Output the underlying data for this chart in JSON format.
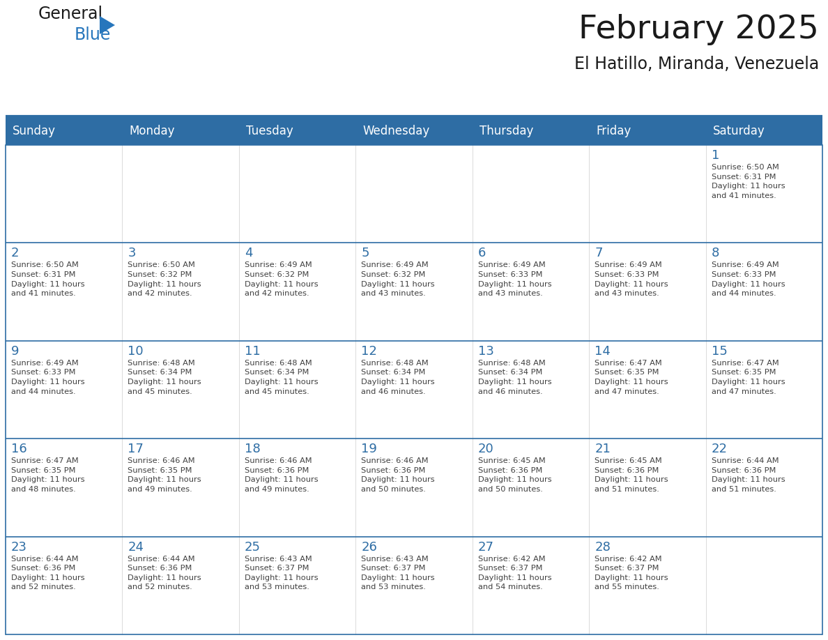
{
  "title": "February 2025",
  "subtitle": "El Hatillo, Miranda, Venezuela",
  "header_bg": "#2E6DA4",
  "header_text": "#FFFFFF",
  "day_number_color": "#2E6DA4",
  "text_color": "#404040",
  "line_color": "#2E6DA4",
  "days_of_week": [
    "Sunday",
    "Monday",
    "Tuesday",
    "Wednesday",
    "Thursday",
    "Friday",
    "Saturday"
  ],
  "weeks": [
    [
      {
        "day": null,
        "info": null
      },
      {
        "day": null,
        "info": null
      },
      {
        "day": null,
        "info": null
      },
      {
        "day": null,
        "info": null
      },
      {
        "day": null,
        "info": null
      },
      {
        "day": null,
        "info": null
      },
      {
        "day": 1,
        "info": "Sunrise: 6:50 AM\nSunset: 6:31 PM\nDaylight: 11 hours\nand 41 minutes."
      }
    ],
    [
      {
        "day": 2,
        "info": "Sunrise: 6:50 AM\nSunset: 6:31 PM\nDaylight: 11 hours\nand 41 minutes."
      },
      {
        "day": 3,
        "info": "Sunrise: 6:50 AM\nSunset: 6:32 PM\nDaylight: 11 hours\nand 42 minutes."
      },
      {
        "day": 4,
        "info": "Sunrise: 6:49 AM\nSunset: 6:32 PM\nDaylight: 11 hours\nand 42 minutes."
      },
      {
        "day": 5,
        "info": "Sunrise: 6:49 AM\nSunset: 6:32 PM\nDaylight: 11 hours\nand 43 minutes."
      },
      {
        "day": 6,
        "info": "Sunrise: 6:49 AM\nSunset: 6:33 PM\nDaylight: 11 hours\nand 43 minutes."
      },
      {
        "day": 7,
        "info": "Sunrise: 6:49 AM\nSunset: 6:33 PM\nDaylight: 11 hours\nand 43 minutes."
      },
      {
        "day": 8,
        "info": "Sunrise: 6:49 AM\nSunset: 6:33 PM\nDaylight: 11 hours\nand 44 minutes."
      }
    ],
    [
      {
        "day": 9,
        "info": "Sunrise: 6:49 AM\nSunset: 6:33 PM\nDaylight: 11 hours\nand 44 minutes."
      },
      {
        "day": 10,
        "info": "Sunrise: 6:48 AM\nSunset: 6:34 PM\nDaylight: 11 hours\nand 45 minutes."
      },
      {
        "day": 11,
        "info": "Sunrise: 6:48 AM\nSunset: 6:34 PM\nDaylight: 11 hours\nand 45 minutes."
      },
      {
        "day": 12,
        "info": "Sunrise: 6:48 AM\nSunset: 6:34 PM\nDaylight: 11 hours\nand 46 minutes."
      },
      {
        "day": 13,
        "info": "Sunrise: 6:48 AM\nSunset: 6:34 PM\nDaylight: 11 hours\nand 46 minutes."
      },
      {
        "day": 14,
        "info": "Sunrise: 6:47 AM\nSunset: 6:35 PM\nDaylight: 11 hours\nand 47 minutes."
      },
      {
        "day": 15,
        "info": "Sunrise: 6:47 AM\nSunset: 6:35 PM\nDaylight: 11 hours\nand 47 minutes."
      }
    ],
    [
      {
        "day": 16,
        "info": "Sunrise: 6:47 AM\nSunset: 6:35 PM\nDaylight: 11 hours\nand 48 minutes."
      },
      {
        "day": 17,
        "info": "Sunrise: 6:46 AM\nSunset: 6:35 PM\nDaylight: 11 hours\nand 49 minutes."
      },
      {
        "day": 18,
        "info": "Sunrise: 6:46 AM\nSunset: 6:36 PM\nDaylight: 11 hours\nand 49 minutes."
      },
      {
        "day": 19,
        "info": "Sunrise: 6:46 AM\nSunset: 6:36 PM\nDaylight: 11 hours\nand 50 minutes."
      },
      {
        "day": 20,
        "info": "Sunrise: 6:45 AM\nSunset: 6:36 PM\nDaylight: 11 hours\nand 50 minutes."
      },
      {
        "day": 21,
        "info": "Sunrise: 6:45 AM\nSunset: 6:36 PM\nDaylight: 11 hours\nand 51 minutes."
      },
      {
        "day": 22,
        "info": "Sunrise: 6:44 AM\nSunset: 6:36 PM\nDaylight: 11 hours\nand 51 minutes."
      }
    ],
    [
      {
        "day": 23,
        "info": "Sunrise: 6:44 AM\nSunset: 6:36 PM\nDaylight: 11 hours\nand 52 minutes."
      },
      {
        "day": 24,
        "info": "Sunrise: 6:44 AM\nSunset: 6:36 PM\nDaylight: 11 hours\nand 52 minutes."
      },
      {
        "day": 25,
        "info": "Sunrise: 6:43 AM\nSunset: 6:37 PM\nDaylight: 11 hours\nand 53 minutes."
      },
      {
        "day": 26,
        "info": "Sunrise: 6:43 AM\nSunset: 6:37 PM\nDaylight: 11 hours\nand 53 minutes."
      },
      {
        "day": 27,
        "info": "Sunrise: 6:42 AM\nSunset: 6:37 PM\nDaylight: 11 hours\nand 54 minutes."
      },
      {
        "day": 28,
        "info": "Sunrise: 6:42 AM\nSunset: 6:37 PM\nDaylight: 11 hours\nand 55 minutes."
      },
      {
        "day": null,
        "info": null
      }
    ]
  ],
  "logo_text1": "General",
  "logo_text2": "Blue",
  "logo_color1": "#1a1a1a",
  "logo_color2": "#2776bc"
}
